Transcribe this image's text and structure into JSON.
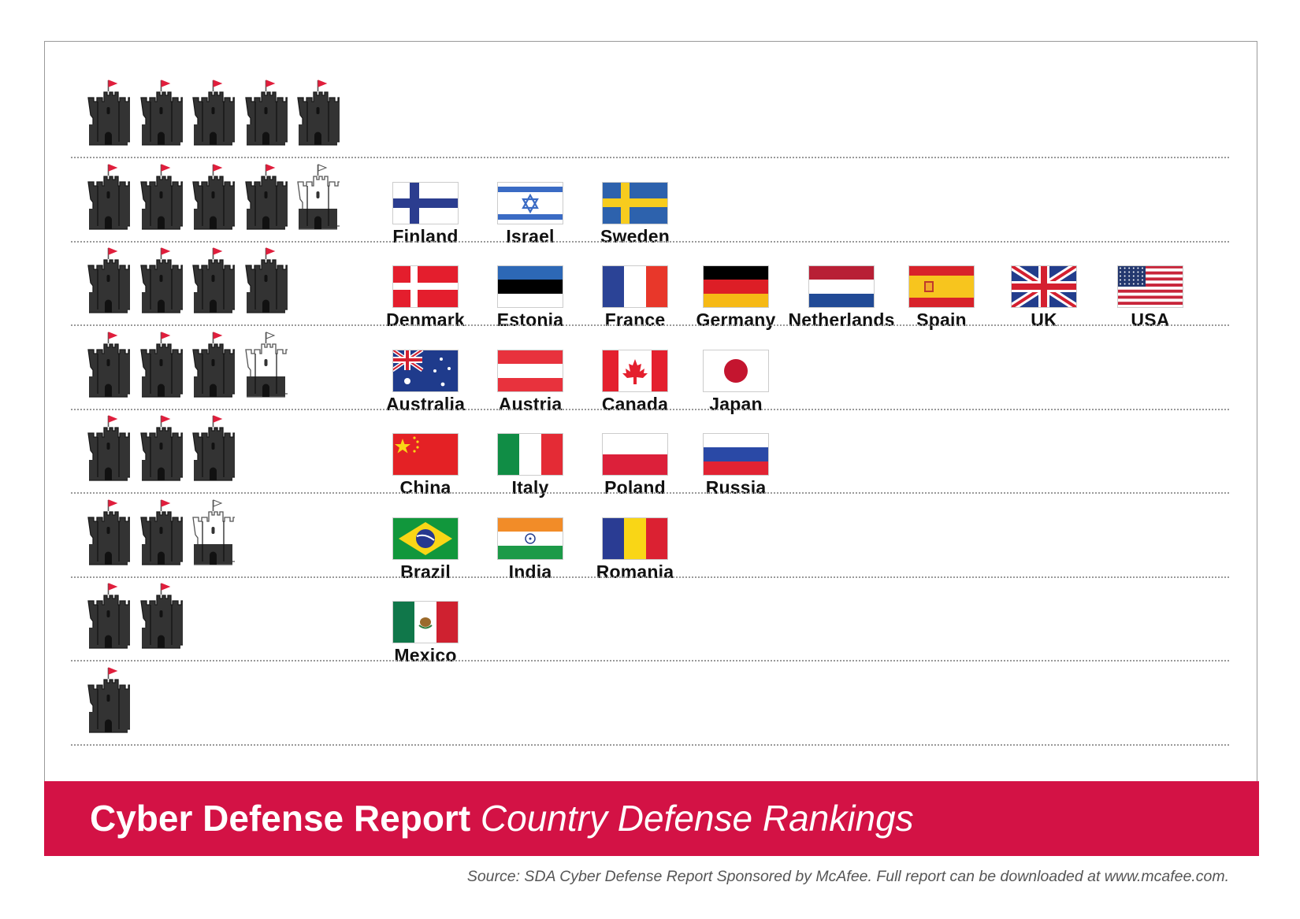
{
  "chart_data": {
    "type": "table",
    "title": "Cyber Defense Report",
    "subtitle": "Country Defense Rankings",
    "source": "Source: SDA Cyber Defense Report Sponsored by McAfee. Full report can be downloaded at www.mcafee.com.",
    "rows": [
      {
        "rating": 5,
        "countries": []
      },
      {
        "rating": 4.5,
        "countries": [
          "Finland",
          "Israel",
          "Sweden"
        ]
      },
      {
        "rating": 4,
        "countries": [
          "Denmark",
          "Estonia",
          "France",
          "Germany",
          "Netherlands",
          "Spain",
          "UK",
          "USA"
        ]
      },
      {
        "rating": 3.5,
        "countries": [
          "Australia",
          "Austria",
          "Canada",
          "Japan"
        ]
      },
      {
        "rating": 3,
        "countries": [
          "China",
          "Italy",
          "Poland",
          "Russia"
        ]
      },
      {
        "rating": 2.5,
        "countries": [
          "Brazil",
          "India",
          "Romania"
        ]
      },
      {
        "rating": 2,
        "countries": [
          "Mexico"
        ]
      },
      {
        "rating": 1,
        "countries": []
      }
    ]
  },
  "colors": {
    "banner": "#d31245",
    "castle_full": "#333333",
    "castle_half": "#ffffff",
    "castle_flag": "#e01e3c",
    "separator": "#9a9a9a"
  },
  "icons": {
    "castle": "castle-icon",
    "half_castle": "half-castle-icon"
  }
}
